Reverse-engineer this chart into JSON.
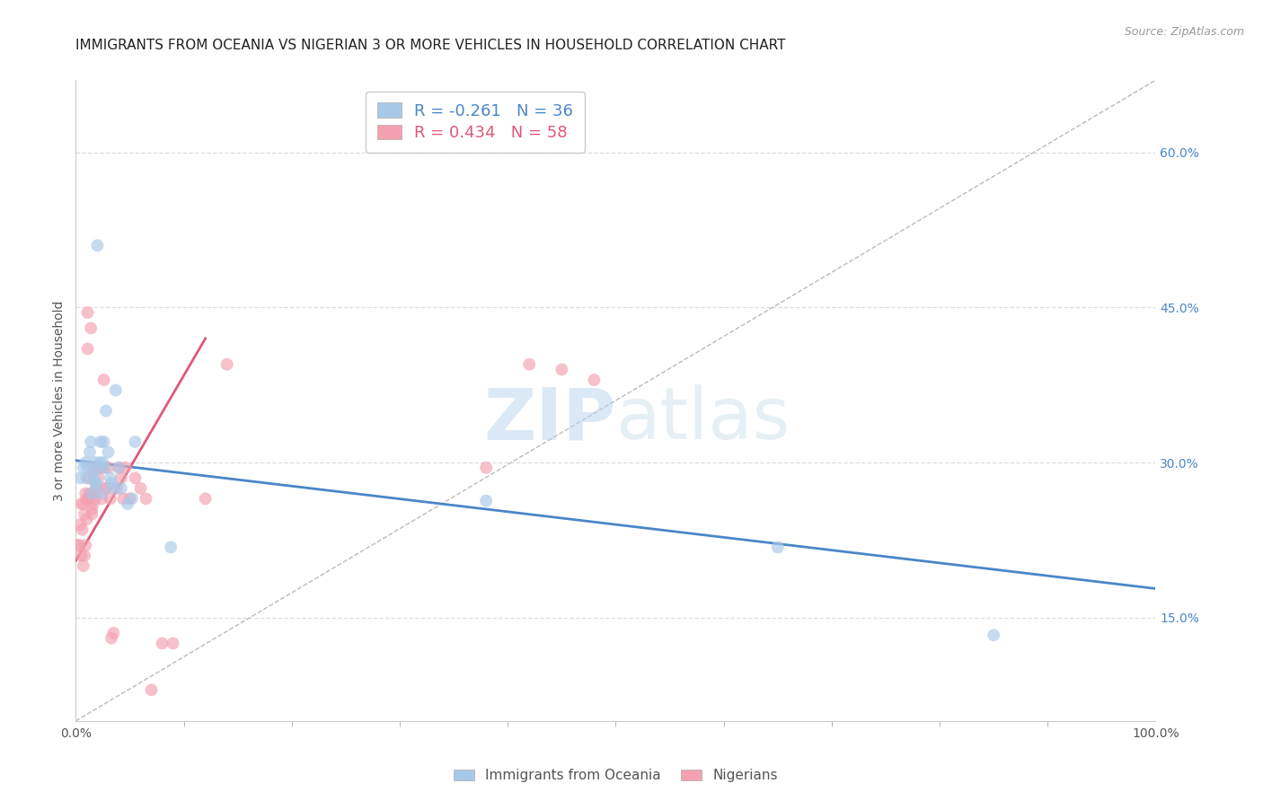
{
  "title": "IMMIGRANTS FROM OCEANIA VS NIGERIAN 3 OR MORE VEHICLES IN HOUSEHOLD CORRELATION CHART",
  "source": "Source: ZipAtlas.com",
  "ylabel": "3 or more Vehicles in Household",
  "legend_label_blue": "Immigrants from Oceania",
  "legend_label_pink": "Nigerians",
  "R_blue": -0.261,
  "N_blue": 36,
  "R_pink": 0.434,
  "N_pink": 58,
  "color_blue": "#A8C8E8",
  "color_pink": "#F4A0B0",
  "line_color_blue": "#4A86C8",
  "line_color_pink": "#E05878",
  "xlim": [
    0.0,
    1.0
  ],
  "ylim": [
    0.05,
    0.67
  ],
  "yticks": [
    0.15,
    0.3,
    0.45,
    0.6
  ],
  "xtick_positions": [
    0.0,
    1.0
  ],
  "xtick_labels": [
    "0.0%",
    "100.0%"
  ],
  "blue_scatter_x": [
    0.004,
    0.007,
    0.009,
    0.01,
    0.011,
    0.013,
    0.014,
    0.015,
    0.016,
    0.017,
    0.018,
    0.018,
    0.019,
    0.02,
    0.021,
    0.022,
    0.023,
    0.024,
    0.025,
    0.026,
    0.027,
    0.028,
    0.03,
    0.032,
    0.033,
    0.035,
    0.037,
    0.04,
    0.042,
    0.048,
    0.052,
    0.055,
    0.38,
    0.65,
    0.85,
    0.088
  ],
  "blue_scatter_y": [
    0.285,
    0.295,
    0.3,
    0.285,
    0.295,
    0.31,
    0.32,
    0.27,
    0.29,
    0.285,
    0.3,
    0.28,
    0.28,
    0.51,
    0.295,
    0.3,
    0.32,
    0.27,
    0.3,
    0.32,
    0.295,
    0.35,
    0.31,
    0.285,
    0.28,
    0.275,
    0.37,
    0.295,
    0.275,
    0.26,
    0.265,
    0.32,
    0.263,
    0.218,
    0.133,
    0.218
  ],
  "pink_scatter_x": [
    0.002,
    0.003,
    0.004,
    0.005,
    0.005,
    0.006,
    0.007,
    0.007,
    0.008,
    0.008,
    0.009,
    0.009,
    0.01,
    0.01,
    0.011,
    0.011,
    0.012,
    0.012,
    0.013,
    0.014,
    0.015,
    0.015,
    0.016,
    0.016,
    0.017,
    0.018,
    0.019,
    0.02,
    0.021,
    0.022,
    0.023,
    0.024,
    0.025,
    0.026,
    0.027,
    0.028,
    0.03,
    0.032,
    0.033,
    0.035,
    0.038,
    0.04,
    0.042,
    0.044,
    0.046,
    0.05,
    0.055,
    0.06,
    0.065,
    0.07,
    0.08,
    0.09,
    0.12,
    0.14,
    0.38,
    0.42,
    0.45,
    0.48
  ],
  "pink_scatter_y": [
    0.22,
    0.22,
    0.24,
    0.26,
    0.21,
    0.235,
    0.26,
    0.2,
    0.25,
    0.21,
    0.27,
    0.22,
    0.265,
    0.245,
    0.41,
    0.445,
    0.285,
    0.265,
    0.27,
    0.43,
    0.25,
    0.255,
    0.26,
    0.295,
    0.27,
    0.265,
    0.275,
    0.295,
    0.285,
    0.295,
    0.295,
    0.265,
    0.295,
    0.38,
    0.275,
    0.275,
    0.295,
    0.265,
    0.13,
    0.135,
    0.275,
    0.295,
    0.285,
    0.265,
    0.295,
    0.265,
    0.285,
    0.275,
    0.265,
    0.08,
    0.125,
    0.125,
    0.265,
    0.395,
    0.295,
    0.395,
    0.39,
    0.38
  ],
  "blue_line_x": [
    0.0,
    1.0
  ],
  "blue_line_y": [
    0.302,
    0.178
  ],
  "pink_line_x": [
    0.0,
    0.12
  ],
  "pink_line_y": [
    0.205,
    0.42
  ],
  "ref_line_x": [
    0.0,
    1.0
  ],
  "ref_line_y": [
    0.05,
    0.67
  ],
  "watermark_zip": "ZIP",
  "watermark_atlas": "atlas",
  "background_color": "#ffffff",
  "grid_color": "#dddddd",
  "title_fontsize": 11,
  "axis_label_fontsize": 10,
  "tick_fontsize": 10,
  "marker_size": 100,
  "marker_alpha": 0.65
}
